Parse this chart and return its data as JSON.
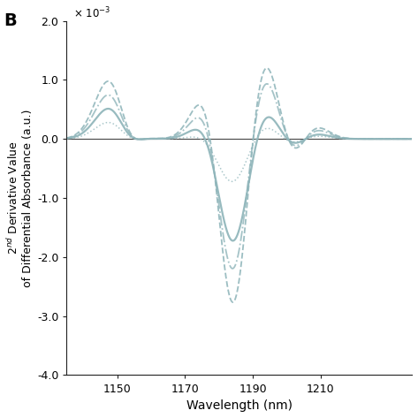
{
  "title_label": "B",
  "xlabel": "Wavelength (nm)",
  "xmin": 1135,
  "xmax": 1237,
  "ymin": -4.0,
  "ymax": 2.0,
  "xticks": [
    1150,
    1170,
    1190,
    1210
  ],
  "yticks": [
    -4.0,
    -3.0,
    -2.0,
    -1.0,
    0.0,
    1.0,
    2.0
  ],
  "color": "#8fb5ba",
  "linewidth_solid": 1.6,
  "linewidth_dashed": 1.3,
  "linewidth_dashdot": 1.3,
  "linewidth_dotted": 1.1,
  "background_color": "#ffffff",
  "scale_factor": 0.001
}
